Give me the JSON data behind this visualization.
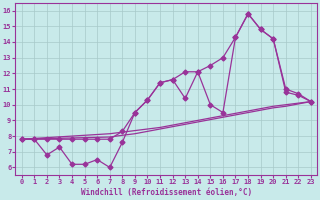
{
  "xlabel": "Windchill (Refroidissement éolien,°C)",
  "background_color": "#c8eaea",
  "line_color": "#993399",
  "x": [
    0,
    1,
    2,
    3,
    4,
    5,
    6,
    7,
    8,
    9,
    10,
    11,
    12,
    13,
    14,
    15,
    16,
    17,
    18,
    19,
    20,
    21,
    22,
    23
  ],
  "y_jagged": [
    7.8,
    7.8,
    6.8,
    7.3,
    6.2,
    6.2,
    6.5,
    6.0,
    7.6,
    9.5,
    10.3,
    11.4,
    11.6,
    10.4,
    12.1,
    10.0,
    9.5,
    14.3,
    15.8,
    14.8,
    14.2,
    10.8,
    10.6,
    10.2
  ],
  "y_upper_envelope": [
    7.8,
    7.8,
    7.8,
    7.8,
    7.8,
    7.8,
    7.8,
    7.8,
    8.3,
    9.5,
    10.3,
    11.4,
    11.6,
    12.1,
    12.1,
    12.5,
    13.0,
    14.3,
    15.8,
    14.8,
    14.2,
    11.0,
    10.7,
    10.2
  ],
  "y_linear1": [
    7.8,
    7.85,
    7.9,
    7.95,
    8.0,
    8.05,
    8.1,
    8.15,
    8.25,
    8.35,
    8.45,
    8.55,
    8.7,
    8.85,
    9.0,
    9.15,
    9.3,
    9.45,
    9.6,
    9.75,
    9.9,
    10.0,
    10.1,
    10.2
  ],
  "y_linear2": [
    7.8,
    7.82,
    7.84,
    7.86,
    7.88,
    7.9,
    7.92,
    7.94,
    8.05,
    8.15,
    8.3,
    8.45,
    8.6,
    8.75,
    8.9,
    9.05,
    9.2,
    9.35,
    9.5,
    9.65,
    9.8,
    9.9,
    10.05,
    10.2
  ],
  "ylim": [
    5.5,
    16.5
  ],
  "xlim": [
    -0.5,
    23.5
  ],
  "yticks": [
    6,
    7,
    8,
    9,
    10,
    11,
    12,
    13,
    14,
    15,
    16
  ],
  "xticks": [
    0,
    1,
    2,
    3,
    4,
    5,
    6,
    7,
    8,
    9,
    10,
    11,
    12,
    13,
    14,
    15,
    16,
    17,
    18,
    19,
    20,
    21,
    22,
    23
  ],
  "grid_color": "#a8caca",
  "markersize": 2.5,
  "linewidth": 0.9
}
